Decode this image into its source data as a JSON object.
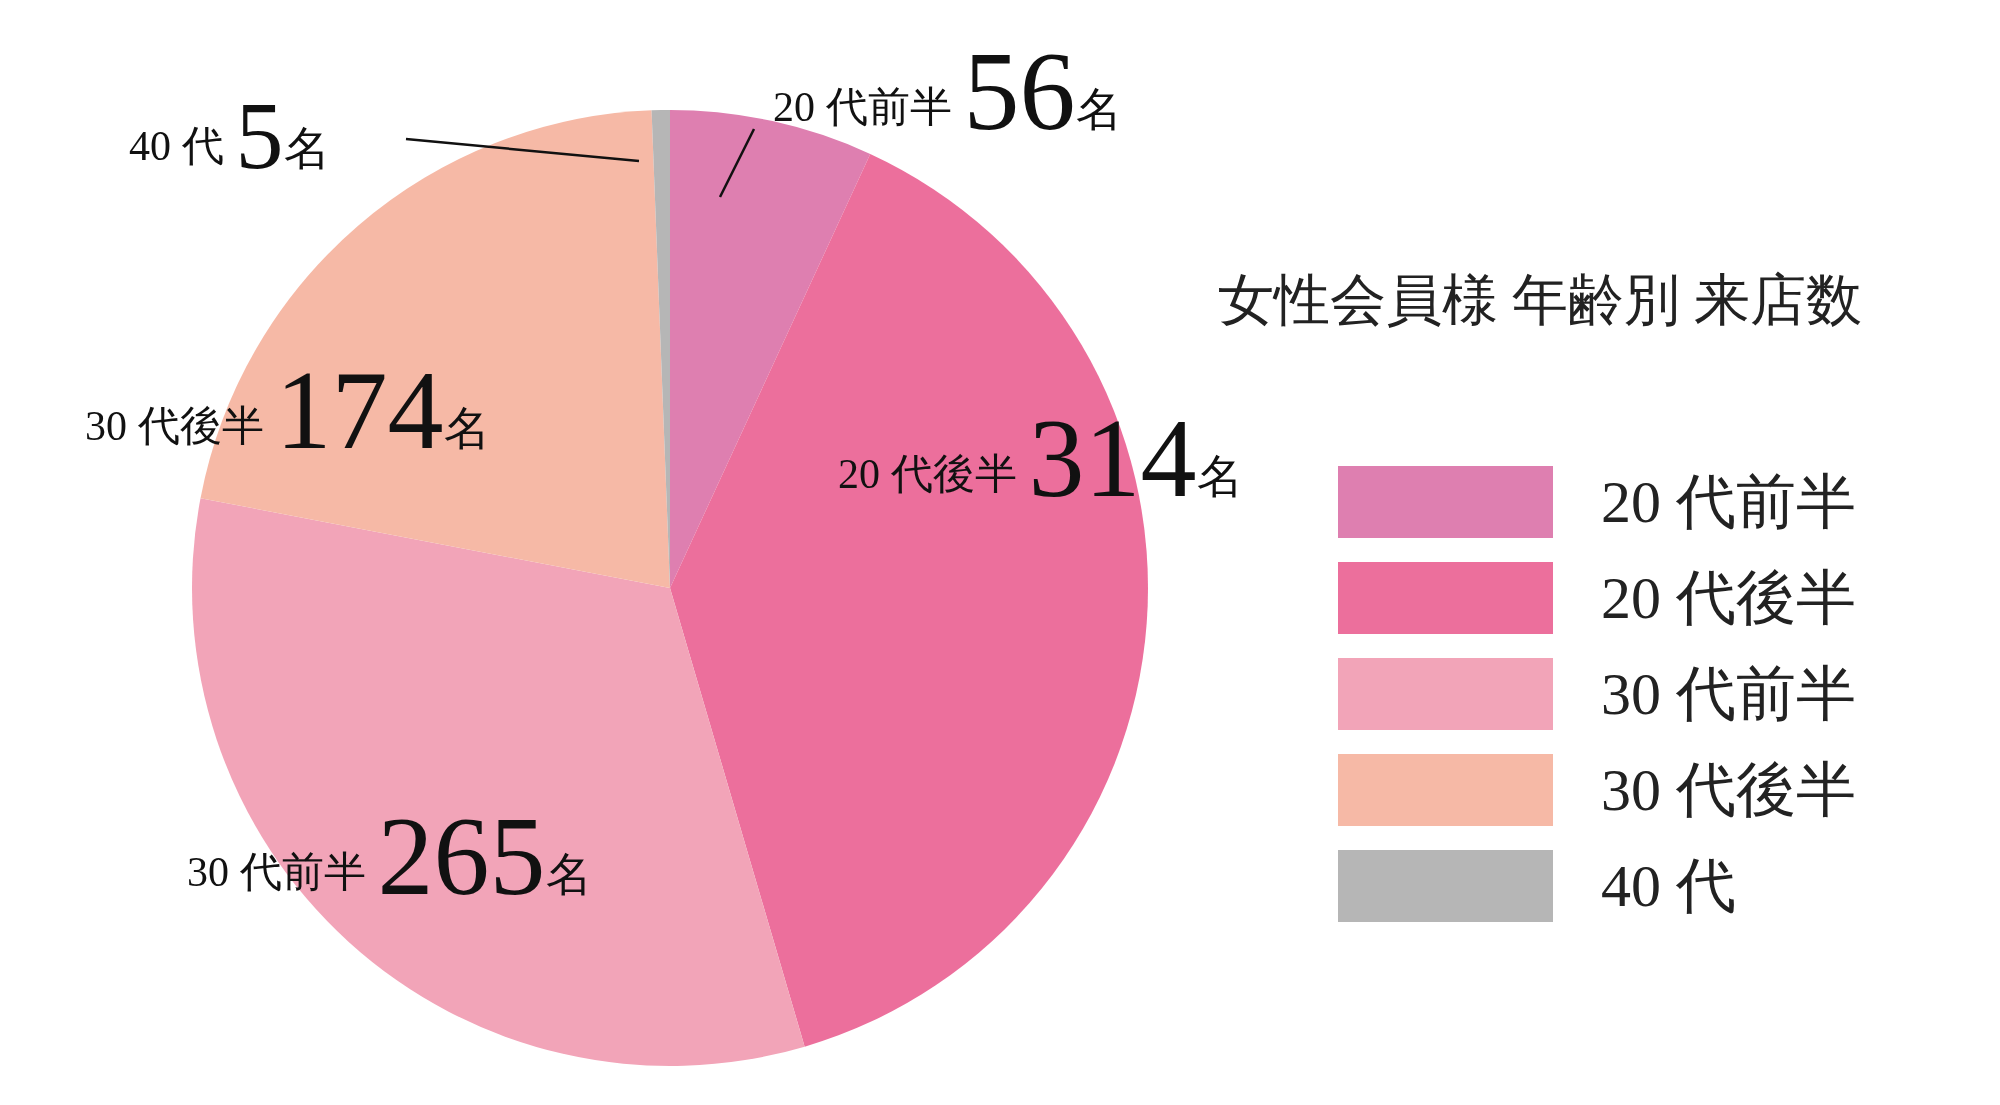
{
  "chart_data": {
    "type": "pie",
    "title": "女性会員様 年齢別 来店数",
    "categories": [
      "20 代前半",
      "20 代後半",
      "30 代前半",
      "30 代後半",
      "40 代"
    ],
    "values": [
      56,
      314,
      265,
      174,
      5
    ],
    "value_labels": [
      "56名",
      "314名",
      "265名",
      "174名",
      "5名"
    ],
    "colors": [
      "#de7fb0",
      "#ec6f9c",
      "#f2a4b8",
      "#f6b9a6",
      "#b6b6b6"
    ],
    "legend": "right"
  }
}
